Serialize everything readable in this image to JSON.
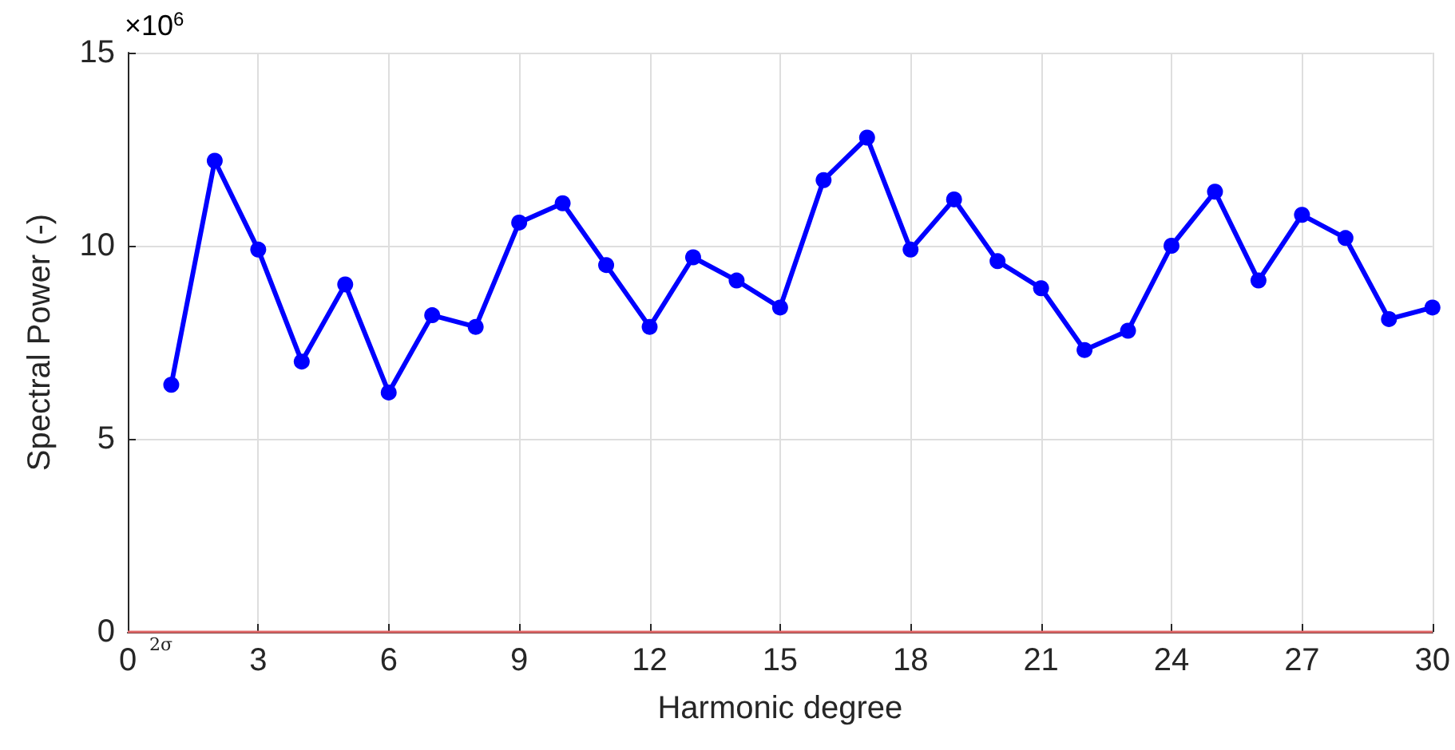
{
  "chart_data": {
    "type": "line",
    "xlabel": "Harmonic degree",
    "ylabel": "Spectral Power (-)",
    "annotations": [
      "×10$^{6}$"
    ],
    "x": [
      1,
      2,
      3,
      4,
      5,
      6,
      7,
      8,
      9,
      10,
      11,
      12,
      13,
      14,
      15,
      16,
      17,
      18,
      19,
      20,
      21,
      22,
      23,
      24,
      25,
      26,
      27,
      28,
      29,
      30
    ],
    "series": [
      {
        "color": "#0000ff",
        "values": [
          6.4,
          12.2,
          9.9,
          7.0,
          9.0,
          6.2,
          8.2,
          7.9,
          10.6,
          11.1,
          9.5,
          7.9,
          9.7,
          9.1,
          8.4,
          11.7,
          12.8,
          9.9,
          11.2,
          9.6,
          8.9,
          7.3,
          7.8,
          10.0,
          11.4,
          9.1,
          10.8,
          10.2,
          8.1,
          8.4
        ]
      }
    ],
    "xlim": [
      0,
      30
    ],
    "xticks": [
      0,
      3,
      6,
      9,
      12,
      15,
      18,
      21,
      24,
      27,
      30
    ],
    "ylim": [
      0,
      15
    ],
    "yticks": [
      0,
      5,
      10,
      15
    ],
    "ref_lines": [
      {
        "axis": "y",
        "value": 0,
        "label": "2σ",
        "color": "#e06666"
      }
    ],
    "grid": true,
    "marker": "circle",
    "line_style": "solid"
  }
}
